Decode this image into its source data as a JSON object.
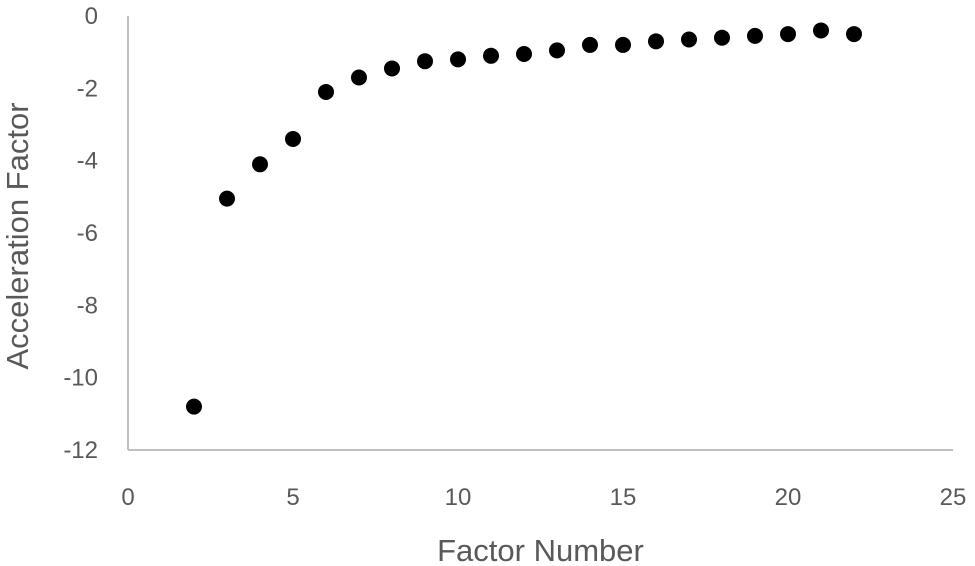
{
  "chart_data": {
    "type": "scatter",
    "title": "",
    "xlabel": "Factor Number",
    "ylabel": "Acceleration Factor",
    "xlim": [
      0,
      25
    ],
    "ylim": [
      -12,
      0
    ],
    "xticks": [
      "0",
      "5",
      "10",
      "15",
      "20",
      "25"
    ],
    "yticks": [
      "0",
      "-2",
      "-4",
      "-6",
      "-8",
      "-10",
      "-12"
    ],
    "grid": false,
    "legend": "none",
    "marker_color": "#000000",
    "series": [
      {
        "x": [
          2,
          3,
          4,
          5,
          6,
          7,
          8,
          9,
          10,
          11,
          12,
          13,
          14,
          15,
          16,
          17,
          18,
          19,
          20,
          21,
          22
        ],
        "values": [
          -10.8,
          -5.05,
          -4.1,
          -3.4,
          -2.1,
          -1.7,
          -1.45,
          -1.25,
          -1.2,
          -1.1,
          -1.05,
          -0.95,
          -0.8,
          -0.8,
          -0.7,
          -0.65,
          -0.6,
          -0.55,
          -0.5,
          -0.4,
          -0.5
        ]
      }
    ]
  }
}
